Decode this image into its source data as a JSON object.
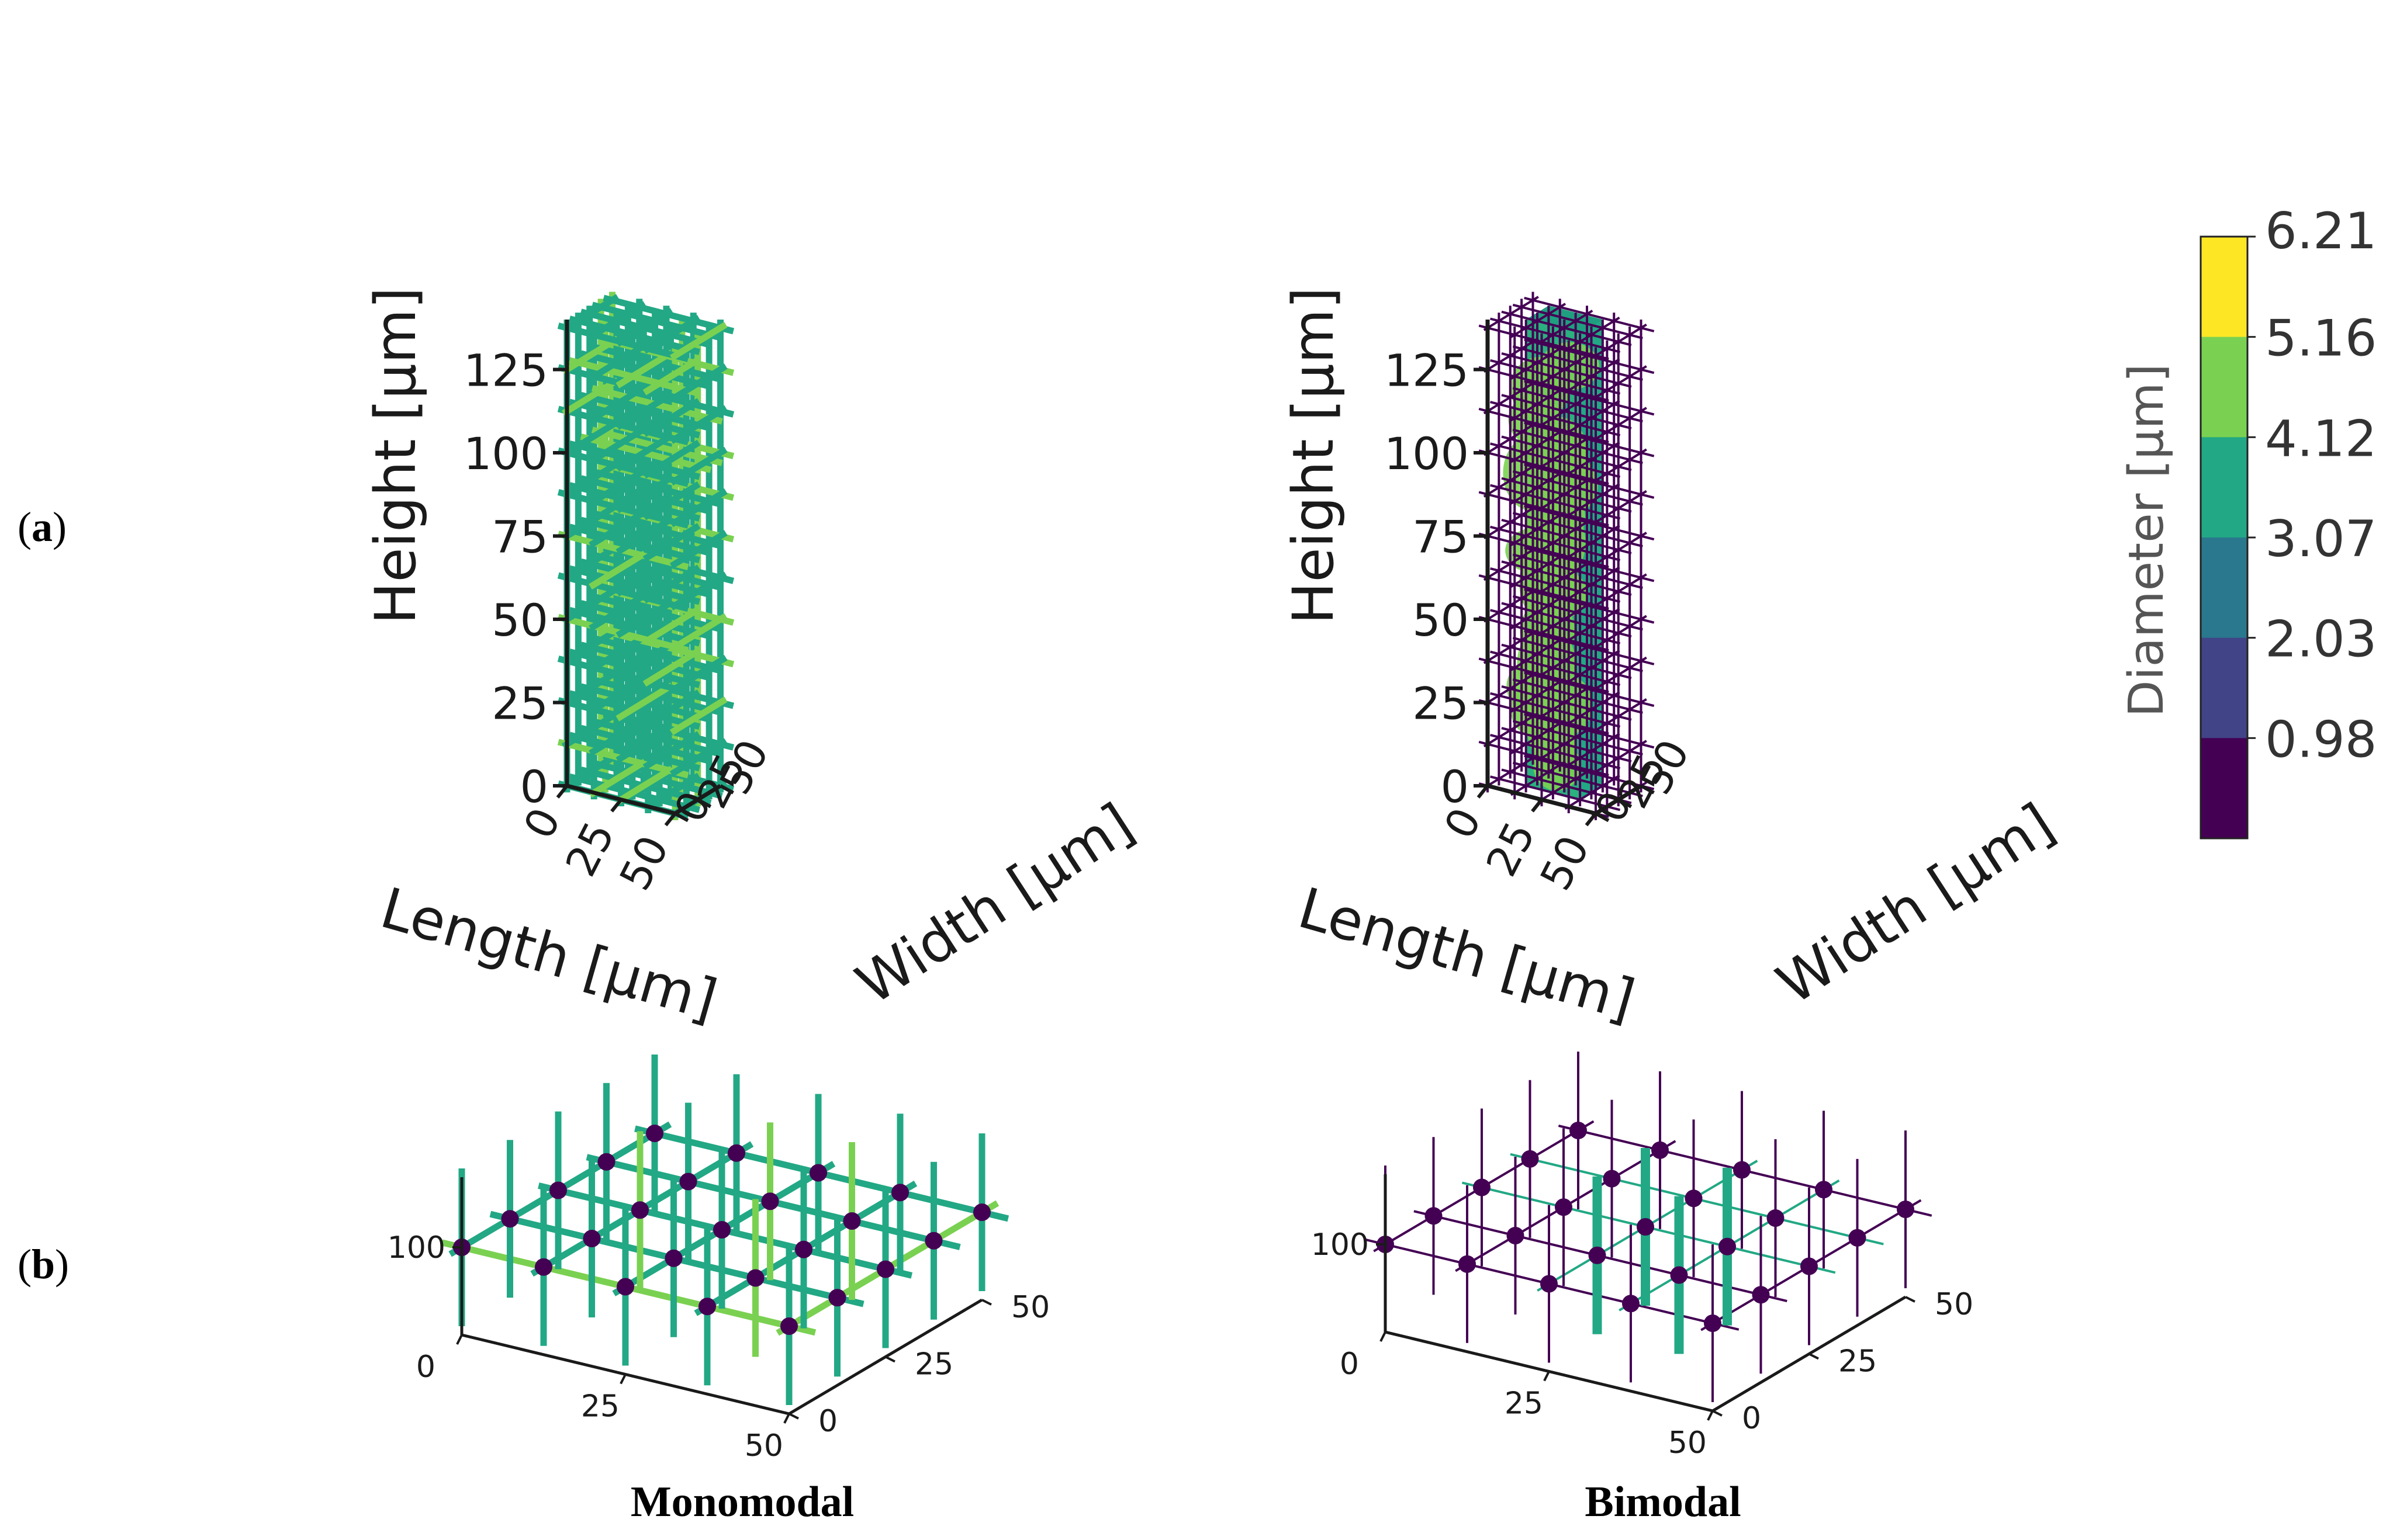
{
  "panel_labels": {
    "a": "(a)",
    "a_open": "(",
    "a_letter": "a",
    "a_close": ")",
    "b": "(b)",
    "b_open": "(",
    "b_letter": "b",
    "b_close": ")"
  },
  "axes_3d": {
    "height_label": "Height [μm]",
    "length_label": "Length [μm]",
    "width_label": "Width [μm]",
    "height_ticks": [
      "0",
      "25",
      "50",
      "75",
      "100",
      "125"
    ],
    "length_ticks": [
      "0",
      "25",
      "50"
    ],
    "width_ticks": [
      "0",
      "25",
      "50"
    ]
  },
  "subplots_b": {
    "height_tick": "100",
    "length_ticks": [
      "0",
      "25",
      "50"
    ],
    "width_ticks": [
      "0",
      "25",
      "50"
    ]
  },
  "captions": {
    "left": "Monomodal",
    "right": "Bimodal"
  },
  "colorbar": {
    "label": "Diameter [μm]",
    "ticks": [
      "6.21",
      "5.16",
      "4.12",
      "3.07",
      "2.03",
      "0.98"
    ],
    "bins": [
      "#fde725",
      "#7ad151",
      "#22a884",
      "#2a788e",
      "#414487",
      "#440154"
    ]
  },
  "colors": {
    "teal": "#22a884",
    "green": "#7ad151",
    "purple": "#440154",
    "node": "#440154",
    "axis": "#1a1a1a"
  }
}
